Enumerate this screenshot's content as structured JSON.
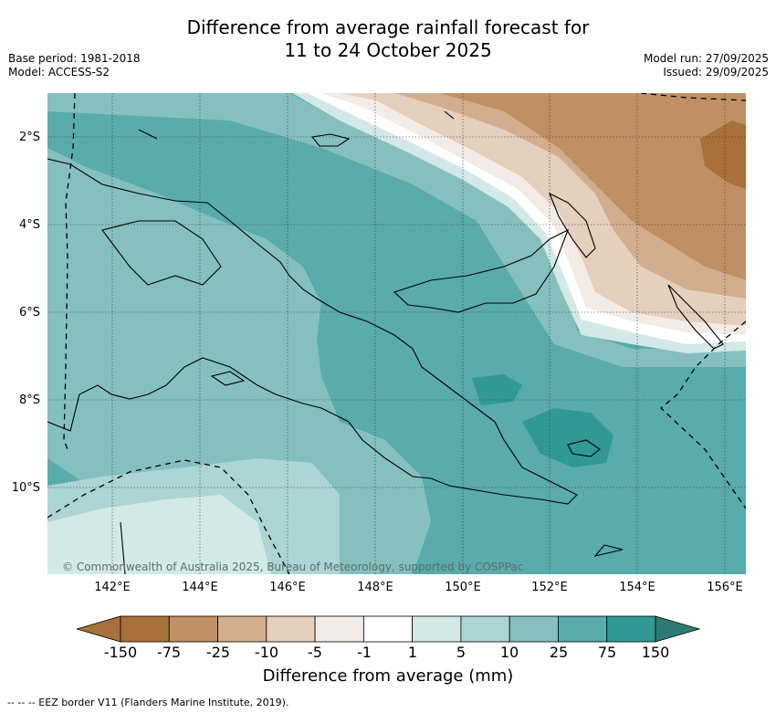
{
  "title": {
    "line1": "Difference from average rainfall forecast for",
    "line2": "11 to 24 October 2025"
  },
  "meta": {
    "base_period": "Base period: 1981-2018",
    "model": "Model: ACCESS-S2",
    "model_run": "Model run: 27/09/2025",
    "issued": "Issued: 29/09/2025"
  },
  "map": {
    "lat_labels": [
      "2°S",
      "4°S",
      "6°S",
      "8°S",
      "10°S"
    ],
    "lon_labels": [
      "142°E",
      "144°E",
      "146°E",
      "148°E",
      "150°E",
      "152°E",
      "154°E",
      "156°E"
    ],
    "copyright": "© Commonwealth of Australia 2025, Bureau of Meteorology, supported by COSPPac"
  },
  "colorbar": {
    "ticks": [
      "-150",
      "-75",
      "-25",
      "-10",
      "-5",
      "-1",
      "1",
      "5",
      "10",
      "25",
      "75",
      "150"
    ],
    "colors": [
      "#a8703a",
      "#c09064",
      "#d2ae8e",
      "#e5cfbd",
      "#f3ece6",
      "#ffffff",
      "#d3e9e7",
      "#acd5d3",
      "#85c0bf",
      "#5aabab",
      "#319995",
      "#2f7a75"
    ],
    "label": "Difference from average (mm)"
  },
  "footnote": "--  --  -- EEZ border V11 (Flanders Marine Institute, 2019)."
}
